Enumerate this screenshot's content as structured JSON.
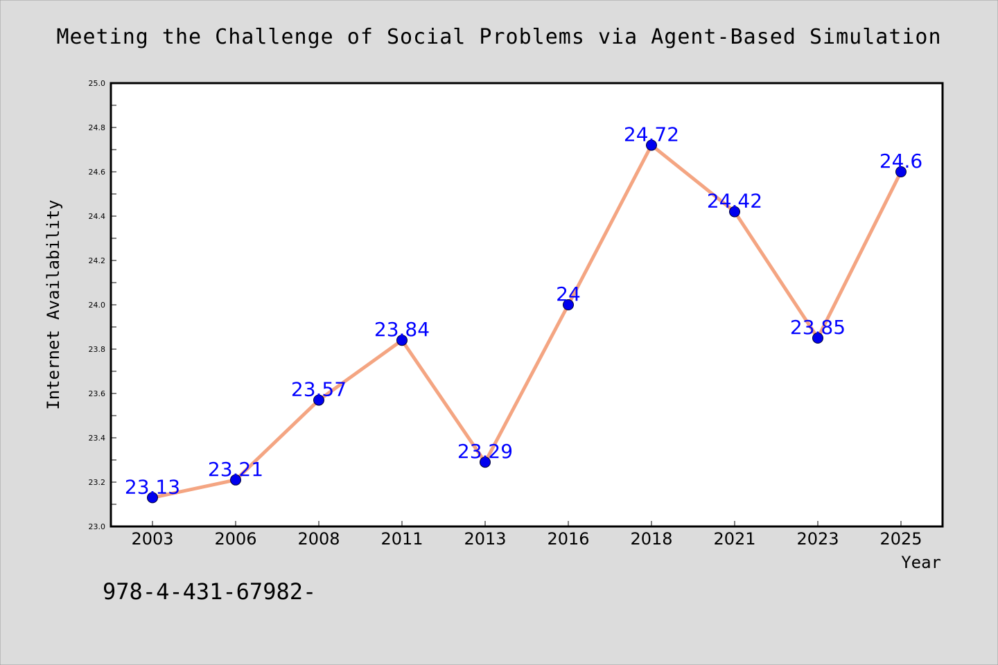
{
  "chart_data": {
    "type": "line",
    "title": "Meeting the Challenge of Social Problems via Agent-Based Simulation",
    "xlabel": "Year",
    "ylabel": "Internet Availability",
    "categories": [
      "2003",
      "2006",
      "2008",
      "2011",
      "2013",
      "2016",
      "2018",
      "2021",
      "2023",
      "2025"
    ],
    "series": [
      {
        "values": [
          23.13,
          23.21,
          23.57,
          23.84,
          23.29,
          24.0,
          24.72,
          24.42,
          23.85,
          24.6
        ],
        "data_labels": [
          "23.13",
          "23.21",
          "23.57",
          "23.84",
          "23.29",
          "24",
          "24.72",
          "24.42",
          "23.85",
          "24.6"
        ]
      }
    ],
    "ylim": [
      23.0,
      25.0
    ],
    "yticks": [
      "23.0",
      "23.2",
      "23.4",
      "23.6",
      "23.8",
      "24.0",
      "24.2",
      "24.4",
      "24.6",
      "24.8",
      "25.0"
    ],
    "grid": false,
    "legend": "none",
    "colors": {
      "line": "#f4a582",
      "marker": "#0000ee",
      "label": "#0000ff",
      "plot_background": "#ffffff",
      "figure_background": "#dcdcdc"
    }
  },
  "footer": {
    "text": "978-4-431-67982-"
  }
}
